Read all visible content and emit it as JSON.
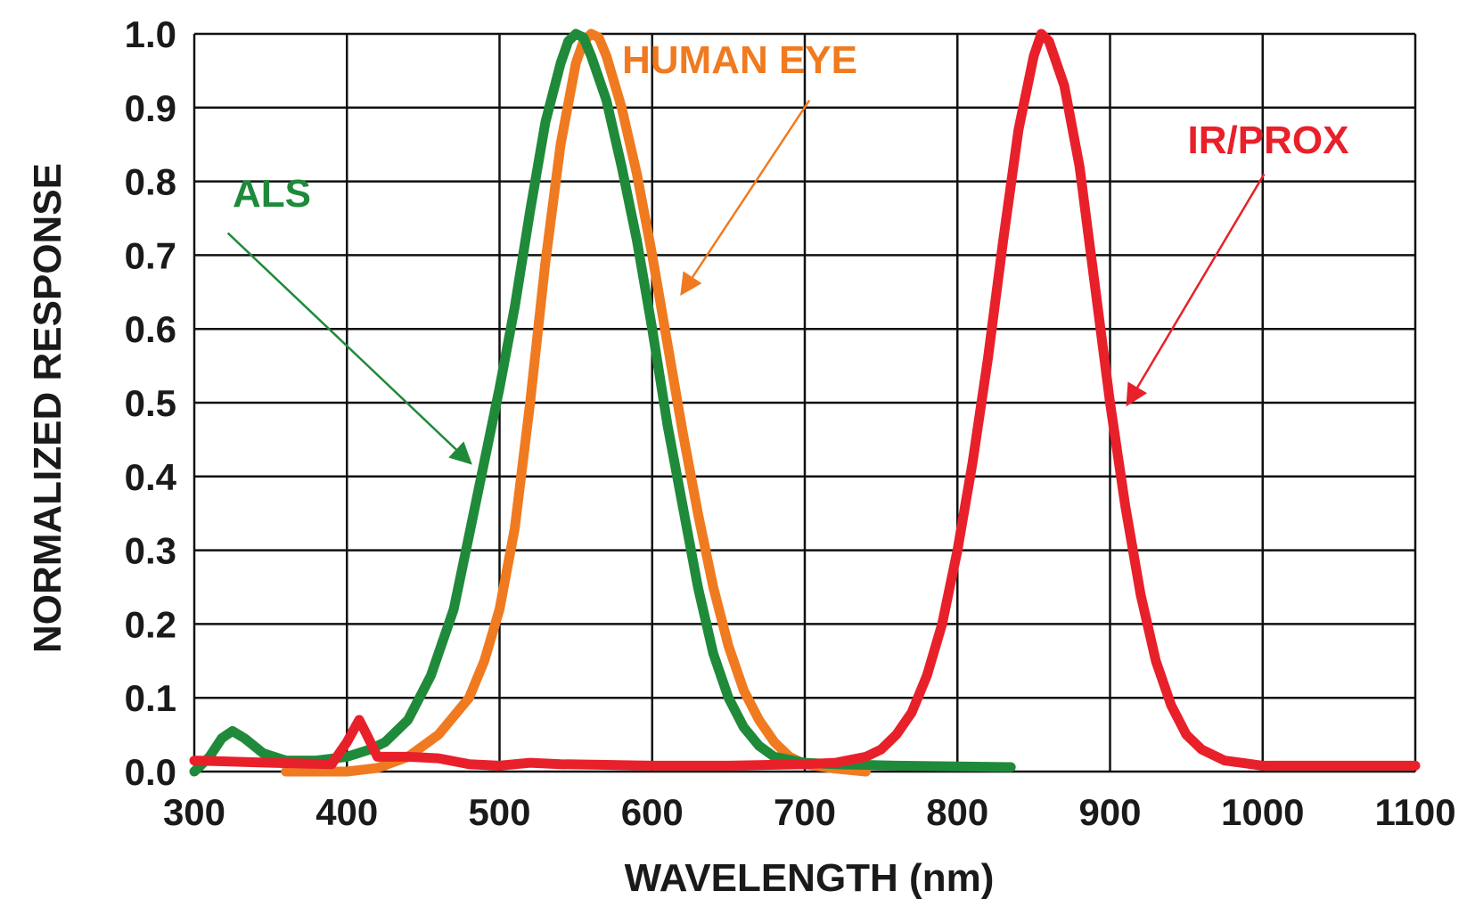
{
  "chart_data": {
    "type": "line",
    "title": "",
    "xlabel": "WAVELENGTH (nm)",
    "ylabel": "NORMALIZED RESPONSE",
    "xlim": [
      300,
      1100
    ],
    "ylim": [
      0,
      1.0
    ],
    "x_ticks": [
      "300",
      "400",
      "500",
      "600",
      "700",
      "800",
      "900",
      "1000",
      "1100"
    ],
    "y_ticks": [
      "0.0",
      "0.1",
      "0.2",
      "0.3",
      "0.4",
      "0.5",
      "0.6",
      "0.7",
      "0.8",
      "0.9",
      "1.0"
    ],
    "grid": true,
    "legend": "none (series labeled by annotations with arrows)",
    "series": [
      {
        "name": "ALS",
        "color": "#1f8a3a",
        "points": [
          [
            300,
            0.0
          ],
          [
            310,
            0.02
          ],
          [
            318,
            0.045
          ],
          [
            325,
            0.055
          ],
          [
            333,
            0.045
          ],
          [
            345,
            0.025
          ],
          [
            360,
            0.015
          ],
          [
            380,
            0.015
          ],
          [
            400,
            0.02
          ],
          [
            415,
            0.03
          ],
          [
            425,
            0.04
          ],
          [
            440,
            0.07
          ],
          [
            455,
            0.13
          ],
          [
            470,
            0.22
          ],
          [
            480,
            0.32
          ],
          [
            490,
            0.42
          ],
          [
            500,
            0.52
          ],
          [
            510,
            0.63
          ],
          [
            520,
            0.76
          ],
          [
            530,
            0.88
          ],
          [
            540,
            0.96
          ],
          [
            545,
            0.99
          ],
          [
            550,
            1.0
          ],
          [
            555,
            0.995
          ],
          [
            560,
            0.97
          ],
          [
            570,
            0.91
          ],
          [
            580,
            0.82
          ],
          [
            590,
            0.72
          ],
          [
            600,
            0.6
          ],
          [
            610,
            0.47
          ],
          [
            620,
            0.36
          ],
          [
            630,
            0.25
          ],
          [
            640,
            0.16
          ],
          [
            650,
            0.1
          ],
          [
            660,
            0.06
          ],
          [
            670,
            0.035
          ],
          [
            680,
            0.02
          ],
          [
            700,
            0.012
          ],
          [
            720,
            0.01
          ],
          [
            760,
            0.008
          ],
          [
            800,
            0.007
          ],
          [
            835,
            0.006
          ]
        ]
      },
      {
        "name": "HUMAN EYE",
        "color": "#f07a20",
        "points": [
          [
            360,
            0.0
          ],
          [
            400,
            0.0
          ],
          [
            420,
            0.005
          ],
          [
            440,
            0.02
          ],
          [
            460,
            0.05
          ],
          [
            480,
            0.1
          ],
          [
            490,
            0.15
          ],
          [
            500,
            0.22
          ],
          [
            510,
            0.33
          ],
          [
            520,
            0.5
          ],
          [
            530,
            0.69
          ],
          [
            540,
            0.85
          ],
          [
            550,
            0.96
          ],
          [
            555,
            0.99
          ],
          [
            560,
            1.0
          ],
          [
            565,
            0.995
          ],
          [
            570,
            0.97
          ],
          [
            580,
            0.9
          ],
          [
            590,
            0.81
          ],
          [
            600,
            0.7
          ],
          [
            610,
            0.58
          ],
          [
            620,
            0.46
          ],
          [
            630,
            0.35
          ],
          [
            640,
            0.25
          ],
          [
            650,
            0.17
          ],
          [
            660,
            0.11
          ],
          [
            670,
            0.07
          ],
          [
            680,
            0.04
          ],
          [
            690,
            0.02
          ],
          [
            700,
            0.01
          ],
          [
            720,
            0.004
          ],
          [
            740,
            0.0
          ]
        ]
      },
      {
        "name": "IR/PROX",
        "color": "#e8202a",
        "points": [
          [
            300,
            0.015
          ],
          [
            350,
            0.012
          ],
          [
            390,
            0.01
          ],
          [
            400,
            0.04
          ],
          [
            408,
            0.07
          ],
          [
            413,
            0.05
          ],
          [
            420,
            0.02
          ],
          [
            440,
            0.02
          ],
          [
            460,
            0.018
          ],
          [
            480,
            0.01
          ],
          [
            500,
            0.008
          ],
          [
            520,
            0.012
          ],
          [
            540,
            0.01
          ],
          [
            600,
            0.008
          ],
          [
            650,
            0.008
          ],
          [
            700,
            0.01
          ],
          [
            720,
            0.012
          ],
          [
            740,
            0.02
          ],
          [
            750,
            0.03
          ],
          [
            760,
            0.05
          ],
          [
            770,
            0.08
          ],
          [
            780,
            0.13
          ],
          [
            790,
            0.2
          ],
          [
            800,
            0.3
          ],
          [
            810,
            0.42
          ],
          [
            820,
            0.56
          ],
          [
            830,
            0.72
          ],
          [
            840,
            0.87
          ],
          [
            850,
            0.97
          ],
          [
            855,
            1.0
          ],
          [
            860,
            0.99
          ],
          [
            870,
            0.93
          ],
          [
            880,
            0.82
          ],
          [
            890,
            0.66
          ],
          [
            900,
            0.5
          ],
          [
            910,
            0.36
          ],
          [
            920,
            0.24
          ],
          [
            930,
            0.15
          ],
          [
            940,
            0.09
          ],
          [
            950,
            0.05
          ],
          [
            960,
            0.03
          ],
          [
            975,
            0.015
          ],
          [
            1000,
            0.008
          ],
          [
            1050,
            0.008
          ],
          [
            1100,
            0.008
          ]
        ]
      }
    ],
    "annotations": [
      {
        "text": "ALS",
        "color": "#1f8a3a",
        "x_from": 322,
        "y_from": 0.73,
        "x_to": 480,
        "y_to": 0.42
      },
      {
        "text": "HUMAN EYE",
        "color": "#f07a20",
        "x_from": 703,
        "y_from": 0.91,
        "x_to": 620,
        "y_to": 0.65
      },
      {
        "text": "IR/PROX",
        "color": "#e8202a",
        "x_from": 1001,
        "y_from": 0.81,
        "x_to": 912,
        "y_to": 0.5
      }
    ]
  }
}
